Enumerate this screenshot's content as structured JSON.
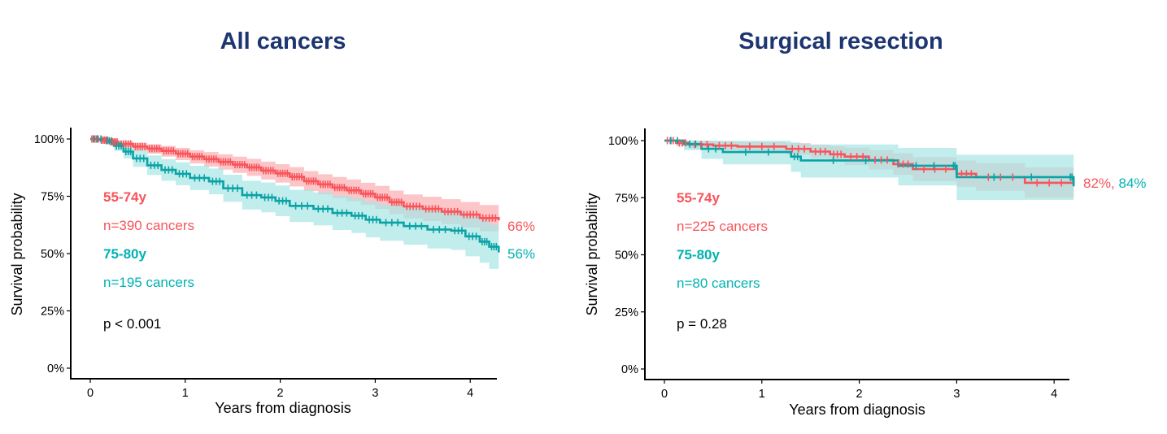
{
  "colors": {
    "group1": "#f8545a",
    "group2": "#00b2b2",
    "group1_line": "#f8545a",
    "group2_line": "#0aa3a5",
    "group1_ci": "#fcc2c4",
    "group2_ci": "#a6e5e5",
    "overlap_ci": "#b3bfc0",
    "title": "#1d3571"
  },
  "chart_data": [
    {
      "type": "line",
      "subtype": "kaplan-meier",
      "title": "All cancers",
      "xlabel": "Years from diagnosis",
      "ylabel": "Survival probability",
      "xlim": [
        0,
        4.3
      ],
      "ylim": [
        0,
        100
      ],
      "xticks": [
        "0",
        "1",
        "2",
        "3",
        "4"
      ],
      "yticks": [
        "0%",
        "25%",
        "50%",
        "75%",
        "100%"
      ],
      "grid": false,
      "legend": "inline-annotations",
      "annotations": {
        "group1_label": "55-74y",
        "group1_n": "n=390 cancers",
        "group2_label": "75-80y",
        "group2_n": "n=195 cancers",
        "pvalue": "p < 0.001",
        "end_label_1": "66%",
        "end_label_2": "56%"
      },
      "series": [
        {
          "name": "55-74y",
          "x": [
            0,
            0.1,
            0.2,
            0.3,
            0.45,
            0.6,
            0.75,
            0.9,
            1.05,
            1.2,
            1.35,
            1.5,
            1.65,
            1.8,
            1.95,
            2.1,
            2.25,
            2.4,
            2.55,
            2.7,
            2.85,
            3.0,
            3.15,
            3.3,
            3.5,
            3.7,
            3.9,
            4.1,
            4.3
          ],
          "y": [
            100,
            99.5,
            98.7,
            97.8,
            96.7,
            95.8,
            94.8,
            93.6,
            92.3,
            91.2,
            90,
            88.8,
            87.6,
            86.2,
            85,
            83.5,
            81.6,
            80.2,
            78.8,
            77.6,
            76.1,
            74.5,
            72.4,
            70.6,
            69.5,
            68.3,
            67,
            65.5,
            64.5
          ],
          "ci_lower": [
            100,
            98.8,
            97.6,
            96.3,
            94.8,
            93.6,
            92.3,
            90.8,
            89.3,
            88,
            86.6,
            85.2,
            83.9,
            82.3,
            81,
            79.3,
            77.3,
            75.8,
            74.2,
            72.9,
            71.3,
            69.5,
            67.3,
            65.4,
            64.2,
            62.9,
            61.5,
            59.8,
            58.6
          ],
          "ci_upper": [
            100,
            100,
            99.7,
            99.1,
            98.4,
            97.7,
            97,
            96.1,
            95.1,
            94.3,
            93.3,
            92.3,
            91.3,
            90.1,
            89,
            87.7,
            86,
            84.6,
            83.4,
            82.3,
            80.9,
            79.5,
            77.5,
            75.8,
            74.8,
            73.7,
            72.5,
            71.2,
            70.4
          ]
        },
        {
          "name": "75-80y",
          "x": [
            0,
            0.15,
            0.25,
            0.35,
            0.45,
            0.6,
            0.75,
            0.9,
            1.05,
            1.25,
            1.4,
            1.6,
            1.8,
            1.95,
            2.1,
            2.35,
            2.55,
            2.75,
            2.9,
            3.05,
            3.3,
            3.55,
            3.8,
            3.95,
            4.1,
            4.2,
            4.3
          ],
          "y": [
            100,
            99.2,
            97,
            94.5,
            91.5,
            88.5,
            86.5,
            84.8,
            83,
            81.5,
            78.5,
            75.5,
            74.5,
            73,
            70.8,
            69.5,
            67.7,
            66.5,
            64.8,
            63.5,
            62,
            60.5,
            60,
            57.5,
            55.2,
            53,
            50.5
          ],
          "ci_lower": [
            100,
            98,
            94.8,
            91.5,
            87.8,
            84.3,
            81.8,
            79.8,
            77.7,
            75.9,
            72.6,
            69.2,
            68,
            66.3,
            63.8,
            62.3,
            60.3,
            59,
            57.1,
            55.6,
            53.9,
            52.2,
            51.6,
            48.8,
            46,
            43.3,
            40.5
          ],
          "ci_upper": [
            100,
            100,
            99.2,
            97.5,
            95.2,
            92.8,
            91.2,
            89.8,
            88.3,
            87.1,
            84.4,
            81.8,
            81,
            79.7,
            77.8,
            76.7,
            75.1,
            74,
            72.5,
            71.4,
            70.1,
            68.8,
            68.4,
            66.2,
            64.4,
            62.7,
            60.5
          ]
        }
      ]
    },
    {
      "type": "line",
      "subtype": "kaplan-meier",
      "title": "Surgical resection",
      "xlabel": "Years from diagnosis",
      "ylabel": "Survival probability",
      "xlim": [
        0,
        4.2
      ],
      "ylim": [
        0,
        100
      ],
      "xticks": [
        "0",
        "1",
        "2",
        "3",
        "4"
      ],
      "yticks": [
        "0%",
        "25%",
        "50%",
        "75%",
        "100%"
      ],
      "grid": false,
      "legend": "inline-annotations",
      "annotations": {
        "group1_label": "55-74y",
        "group1_n": "n=225 cancers",
        "group2_label": "75-80y",
        "group2_n": "n=80 cancers",
        "pvalue": "p = 0.28",
        "end_label_1": "82%",
        "end_label_sep": ", ",
        "end_label_2": "84%"
      },
      "series": [
        {
          "name": "55-74y",
          "x": [
            0,
            0.12,
            0.25,
            0.5,
            0.75,
            1.25,
            1.5,
            1.7,
            1.85,
            2.1,
            2.35,
            2.55,
            3.0,
            3.2,
            3.7,
            4.2
          ],
          "y": [
            100,
            99,
            98.3,
            97.8,
            97.4,
            96.4,
            95.2,
            94,
            93,
            91.5,
            89.7,
            87.5,
            85.5,
            84,
            81.5,
            81.5
          ],
          "ci_lower": [
            100,
            97.7,
            96.6,
            95.8,
            95.2,
            93.8,
            92.2,
            90.6,
            89.3,
            87.4,
            85,
            82.3,
            79.8,
            78,
            75,
            74.5
          ],
          "ci_upper": [
            100,
            100,
            99.9,
            99.6,
            99.4,
            98.9,
            98.2,
            97.5,
            96.9,
            95.8,
            94.5,
            92.8,
            91.3,
            90.2,
            88.3,
            88.3
          ]
        },
        {
          "name": "75-80y",
          "x": [
            0,
            0.2,
            0.38,
            0.6,
            1.3,
            1.4,
            2.4,
            2.95,
            3.0,
            4.15,
            4.2
          ],
          "y": [
            100,
            98.5,
            96.4,
            95,
            93,
            91.3,
            89,
            89,
            84,
            84,
            80
          ],
          "ci_lower": [
            100,
            95.8,
            92,
            89.6,
            86.3,
            83.8,
            80.4,
            80.4,
            74,
            74,
            67.5
          ],
          "ci_upper": [
            100,
            100,
            100,
            99.9,
            99.2,
            98.3,
            96.8,
            96.8,
            93.8,
            93.8,
            92.3
          ]
        }
      ]
    }
  ]
}
